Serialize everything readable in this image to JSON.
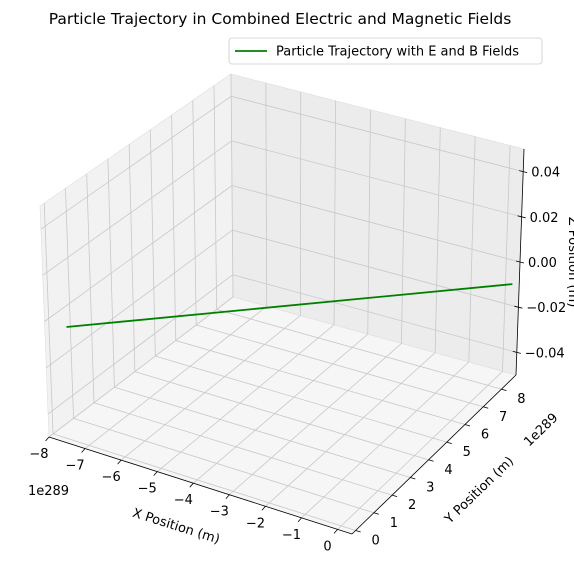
{
  "chart_data": {
    "type": "line",
    "projection": "3d",
    "title": "Particle Trajectory in Combined Electric and Magnetic Fields",
    "xlabel": "X Position (m)",
    "ylabel": "Y Position (m)",
    "zlabel": "Z Position (m)",
    "x_offset_label": "1e289",
    "y_offset_label": "1e289",
    "xlim": [
      -8,
      0.4
    ],
    "ylim": [
      -0.2,
      8.8
    ],
    "zlim": [
      -0.05,
      0.05
    ],
    "x_ticks": [
      "−8",
      "−7",
      "−6",
      "−5",
      "−4",
      "−3",
      "−2",
      "−1",
      "0"
    ],
    "y_ticks": [
      "0",
      "1",
      "2",
      "3",
      "4",
      "5",
      "6",
      "7",
      "8"
    ],
    "z_ticks": [
      "0.04",
      "0.02",
      "0.00",
      "−0.02",
      "−0.04"
    ],
    "grid": true,
    "legend_position": "top-right",
    "series": [
      {
        "name": "Particle Trajectory with E and B Fields",
        "color": "#008000",
        "x": [
          -7.6,
          0.0
        ],
        "y": [
          0.0,
          8.4
        ],
        "z": [
          0.0,
          0.0
        ]
      }
    ]
  }
}
